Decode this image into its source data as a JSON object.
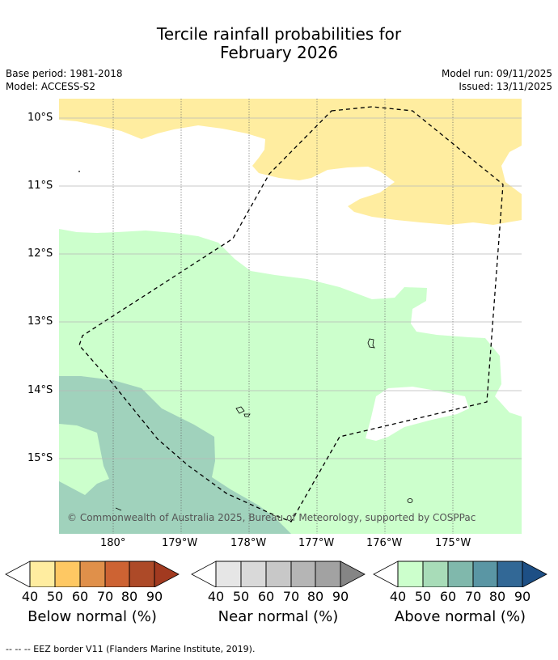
{
  "title": {
    "line1": "Tercile rainfall probabilities for",
    "line2": "February 2026"
  },
  "meta": {
    "base_period": "Base period: 1981-2018",
    "model": "Model: ACCESS-S2",
    "model_run": "Model run: 09/11/2025",
    "issued": "Issued: 13/11/2025"
  },
  "map": {
    "lat_labels": [
      "10°S",
      "11°S",
      "12°S",
      "13°S",
      "14°S",
      "15°S"
    ],
    "lon_labels": [
      "180°",
      "179°W",
      "178°W",
      "177°W",
      "176°W",
      "175°W"
    ],
    "copyright": "© Commonwealth of Australia 2025, Bureau of Meteorology, supported by COSPPac",
    "colors": {
      "below_40": "#ffeda0",
      "above_40": "#ccffcc",
      "above_60": "#a0d2bc",
      "eez": "#000000"
    }
  },
  "legend": {
    "ticks": [
      "40",
      "50",
      "60",
      "70",
      "80",
      "90"
    ],
    "below": {
      "label": "Below normal (%)",
      "colors": [
        "#ffeda0",
        "#fec863",
        "#e0904a",
        "#cd6333",
        "#ad4a28",
        "#a23a20"
      ]
    },
    "near": {
      "label": "Near normal (%)",
      "colors": [
        "#e6e6e6",
        "#d9d9d9",
        "#c8c8c8",
        "#b5b5b5",
        "#a2a2a2",
        "#858585"
      ]
    },
    "above": {
      "label": "Above normal (%)",
      "colors": [
        "#ccffcc",
        "#a8dcb8",
        "#80b8ac",
        "#5a96a4",
        "#326896",
        "#1d4f85"
      ]
    }
  },
  "footnote": "--  --  -- EEZ border V11 (Flanders Marine Institute, 2019)."
}
